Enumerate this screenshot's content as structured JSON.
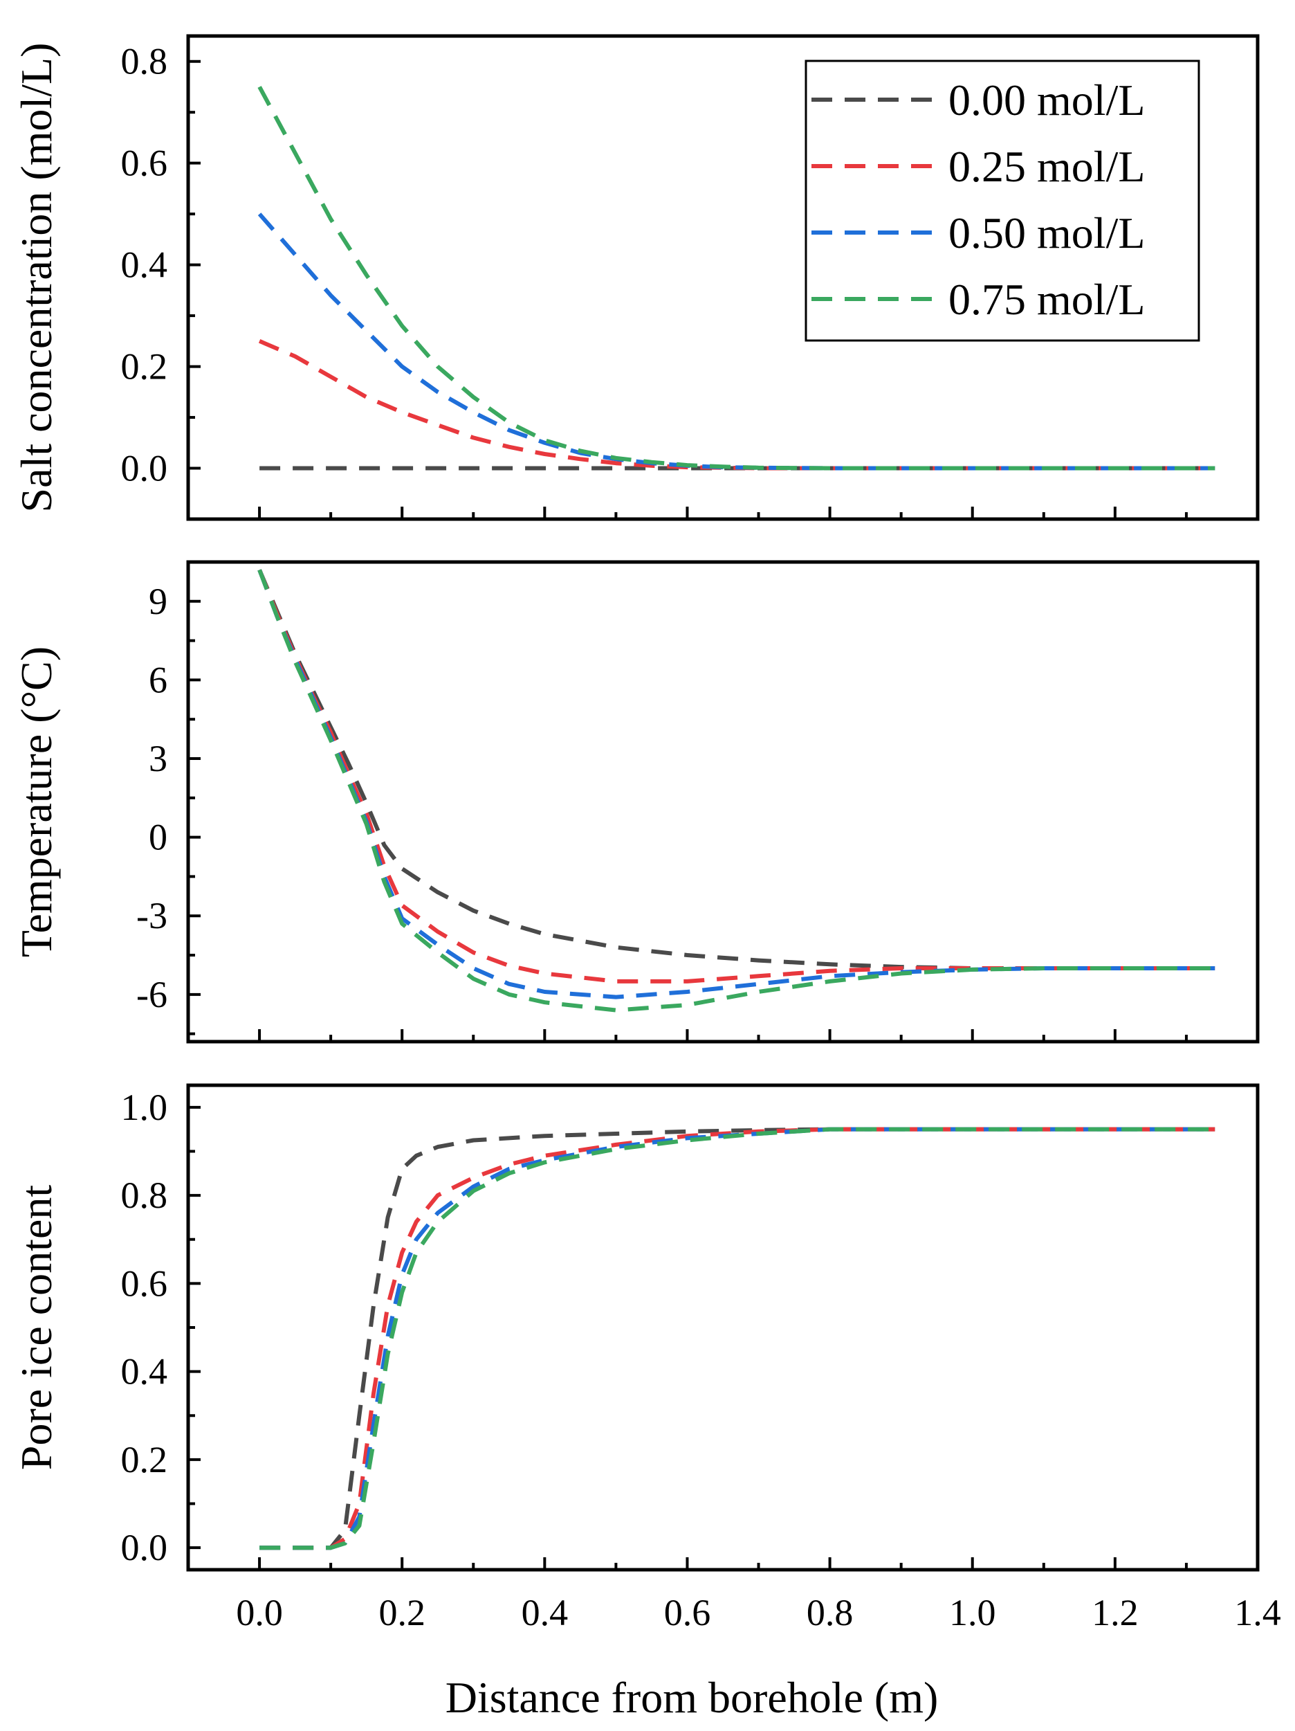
{
  "chart_data": {
    "type": "line",
    "xlabel": "Distance from borehole (m)",
    "xlim": [
      -0.1,
      1.4
    ],
    "x_ticks": [
      "0.0",
      "0.2",
      "0.4",
      "0.6",
      "0.8",
      "1.0",
      "1.2",
      "1.4"
    ],
    "legend": {
      "placement": "top-right",
      "entries": [
        {
          "label": "0.00 mol/L",
          "color": "#4a4a4a"
        },
        {
          "label": "0.25 mol/L",
          "color": "#e8383d"
        },
        {
          "label": "0.50 mol/L",
          "color": "#1f6fd9"
        },
        {
          "label": "0.75 mol/L",
          "color": "#3aa85f"
        }
      ]
    },
    "panels": [
      {
        "id": "salt",
        "ylabel": "Salt concentration (mol/L)",
        "ylim": [
          -0.1,
          0.85
        ],
        "y_ticks": [
          "0.0",
          "0.2",
          "0.4",
          "0.6",
          "0.8"
        ],
        "series": [
          {
            "name": "0.00 mol/L",
            "x": [
              0,
              1.34
            ],
            "y": [
              0,
              0
            ]
          },
          {
            "name": "0.25 mol/L",
            "x": [
              0,
              0.05,
              0.1,
              0.15,
              0.2,
              0.25,
              0.3,
              0.35,
              0.4,
              0.45,
              0.5,
              0.55,
              0.6,
              0.65,
              0.7,
              0.8,
              0.9,
              1.34
            ],
            "y": [
              0.25,
              0.22,
              0.18,
              0.14,
              0.11,
              0.085,
              0.06,
              0.042,
              0.028,
              0.018,
              0.01,
              0.005,
              0.002,
              0.001,
              0,
              0,
              0,
              0
            ]
          },
          {
            "name": "0.50 mol/L",
            "x": [
              0,
              0.05,
              0.1,
              0.15,
              0.2,
              0.25,
              0.3,
              0.35,
              0.4,
              0.45,
              0.5,
              0.55,
              0.6,
              0.65,
              0.7,
              0.8,
              0.9,
              1.34
            ],
            "y": [
              0.5,
              0.42,
              0.34,
              0.27,
              0.2,
              0.15,
              0.11,
              0.075,
              0.05,
              0.03,
              0.018,
              0.01,
              0.005,
              0.002,
              0.001,
              0,
              0,
              0
            ]
          },
          {
            "name": "0.75 mol/L",
            "x": [
              0,
              0.05,
              0.1,
              0.15,
              0.2,
              0.25,
              0.3,
              0.35,
              0.4,
              0.45,
              0.5,
              0.55,
              0.6,
              0.65,
              0.7,
              0.8,
              0.9,
              1.34
            ],
            "y": [
              0.75,
              0.62,
              0.49,
              0.38,
              0.28,
              0.2,
              0.14,
              0.09,
              0.055,
              0.034,
              0.02,
              0.012,
              0.006,
              0.003,
              0.001,
              0,
              0,
              0
            ]
          }
        ]
      },
      {
        "id": "temperature",
        "ylabel": "Temperature (°C)",
        "ylim": [
          -7.8,
          10.5
        ],
        "y_ticks": [
          "9",
          "6",
          "3",
          "0",
          "-3",
          "-6"
        ],
        "y_tick_values": [
          9,
          6,
          3,
          0,
          -3,
          -6
        ],
        "series": [
          {
            "name": "0.00 mol/L",
            "x": [
              0,
              0.025,
              0.05,
              0.075,
              0.1,
              0.125,
              0.15,
              0.175,
              0.2,
              0.25,
              0.3,
              0.35,
              0.4,
              0.5,
              0.6,
              0.7,
              0.8,
              0.9,
              1.0,
              1.1,
              1.2,
              1.34
            ],
            "y": [
              10.2,
              8.6,
              7.0,
              5.6,
              4.2,
              2.8,
              1.3,
              -0.3,
              -1.2,
              -2.1,
              -2.8,
              -3.3,
              -3.7,
              -4.2,
              -4.5,
              -4.7,
              -4.85,
              -4.95,
              -5.0,
              -5.0,
              -5.0,
              -5.0
            ]
          },
          {
            "name": "0.25 mol/L",
            "x": [
              0,
              0.025,
              0.05,
              0.075,
              0.1,
              0.125,
              0.15,
              0.175,
              0.2,
              0.25,
              0.3,
              0.35,
              0.4,
              0.5,
              0.6,
              0.7,
              0.8,
              0.9,
              1.0,
              1.1,
              1.2,
              1.34
            ],
            "y": [
              10.2,
              8.5,
              6.9,
              5.4,
              4.0,
              2.4,
              0.9,
              -1.1,
              -2.6,
              -3.6,
              -4.4,
              -4.9,
              -5.2,
              -5.5,
              -5.5,
              -5.3,
              -5.1,
              -5.0,
              -5.0,
              -5.0,
              -5.0,
              -5.0
            ]
          },
          {
            "name": "0.50 mol/L",
            "x": [
              0,
              0.025,
              0.05,
              0.075,
              0.1,
              0.125,
              0.15,
              0.175,
              0.2,
              0.25,
              0.3,
              0.35,
              0.4,
              0.5,
              0.6,
              0.7,
              0.8,
              0.9,
              1.0,
              1.1,
              1.2,
              1.34
            ],
            "y": [
              10.2,
              8.4,
              6.8,
              5.3,
              3.8,
              2.2,
              0.6,
              -1.5,
              -3.1,
              -4.1,
              -5.0,
              -5.6,
              -5.9,
              -6.1,
              -5.9,
              -5.6,
              -5.3,
              -5.15,
              -5.05,
              -5.0,
              -5.0,
              -5.0
            ]
          },
          {
            "name": "0.75 mol/L",
            "x": [
              0,
              0.025,
              0.05,
              0.075,
              0.1,
              0.125,
              0.15,
              0.175,
              0.2,
              0.25,
              0.3,
              0.35,
              0.4,
              0.5,
              0.6,
              0.7,
              0.8,
              0.9,
              1.0,
              1.1,
              1.2,
              1.34
            ],
            "y": [
              10.2,
              8.4,
              6.7,
              5.2,
              3.7,
              2.1,
              0.5,
              -1.7,
              -3.3,
              -4.4,
              -5.4,
              -6.0,
              -6.3,
              -6.6,
              -6.4,
              -5.9,
              -5.5,
              -5.2,
              -5.05,
              -5.0,
              -5.0,
              -5.0
            ]
          }
        ]
      },
      {
        "id": "ice",
        "ylabel": "Pore ice content",
        "ylim": [
          -0.05,
          1.05
        ],
        "y_ticks": [
          "0.0",
          "0.2",
          "0.4",
          "0.6",
          "0.8",
          "1.0"
        ],
        "series": [
          {
            "name": "0.00 mol/L",
            "x": [
              0,
              0.1,
              0.12,
              0.14,
              0.16,
              0.18,
              0.2,
              0.22,
              0.25,
              0.3,
              0.4,
              0.5,
              0.6,
              0.7,
              0.8,
              1.34
            ],
            "y": [
              0,
              0,
              0.04,
              0.3,
              0.55,
              0.75,
              0.86,
              0.89,
              0.91,
              0.925,
              0.935,
              0.94,
              0.945,
              0.948,
              0.95,
              0.95
            ]
          },
          {
            "name": "0.25 mol/L",
            "x": [
              0,
              0.1,
              0.12,
              0.14,
              0.16,
              0.18,
              0.2,
              0.22,
              0.25,
              0.3,
              0.35,
              0.4,
              0.5,
              0.6,
              0.7,
              0.8,
              1.34
            ],
            "y": [
              0,
              0,
              0.02,
              0.1,
              0.35,
              0.55,
              0.67,
              0.74,
              0.8,
              0.84,
              0.87,
              0.89,
              0.915,
              0.935,
              0.945,
              0.95,
              0.95
            ]
          },
          {
            "name": "0.50 mol/L",
            "x": [
              0,
              0.1,
              0.12,
              0.14,
              0.16,
              0.18,
              0.2,
              0.22,
              0.25,
              0.3,
              0.35,
              0.4,
              0.5,
              0.6,
              0.7,
              0.8,
              1.34
            ],
            "y": [
              0,
              0,
              0.01,
              0.07,
              0.28,
              0.48,
              0.62,
              0.7,
              0.76,
              0.82,
              0.86,
              0.88,
              0.91,
              0.93,
              0.94,
              0.95,
              0.95
            ]
          },
          {
            "name": "0.75 mol/L",
            "x": [
              0,
              0.1,
              0.12,
              0.14,
              0.16,
              0.18,
              0.2,
              0.22,
              0.25,
              0.3,
              0.35,
              0.4,
              0.5,
              0.6,
              0.7,
              0.8,
              1.34
            ],
            "y": [
              0,
              0,
              0.01,
              0.05,
              0.24,
              0.44,
              0.58,
              0.67,
              0.74,
              0.81,
              0.85,
              0.875,
              0.905,
              0.925,
              0.94,
              0.95,
              0.95
            ]
          }
        ]
      }
    ]
  }
}
